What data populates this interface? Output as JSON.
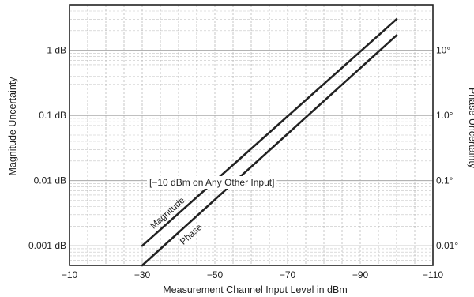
{
  "chart_data": {
    "type": "line",
    "xlabel": "Measurement Channel Input Level in dBm",
    "ylabel": "Magnitude Uncertainty",
    "y2label": "Phase Uncertainty",
    "xlim": [
      -10,
      -110
    ],
    "x_ticks": [
      -10,
      -30,
      -50,
      -70,
      -90,
      -110
    ],
    "x_tick_labels": [
      "−10",
      "−30",
      "−50",
      "−70",
      "−90",
      "−110"
    ],
    "ylim": [
      0.0005,
      5
    ],
    "yscale": "log",
    "y_ticks": [
      1,
      0.1,
      0.01,
      0.001
    ],
    "y_tick_labels": [
      "1 dB",
      "0.1 dB",
      "0.01 dB",
      "0.001 dB"
    ],
    "y2_ticks": [
      10,
      1,
      0.1,
      0.01
    ],
    "y2_tick_labels": [
      "10°",
      "1.0°",
      "0.1°",
      "0.01°"
    ],
    "grid": true,
    "annotation": "[−10 dBm on Any Other Input]",
    "series": [
      {
        "name": "Magnitude",
        "x": [
          -30,
          -100
        ],
        "y": [
          0.001,
          3.0
        ]
      },
      {
        "name": "Phase",
        "x": [
          -30,
          -100
        ],
        "y": [
          0.0005,
          1.7
        ]
      }
    ]
  }
}
